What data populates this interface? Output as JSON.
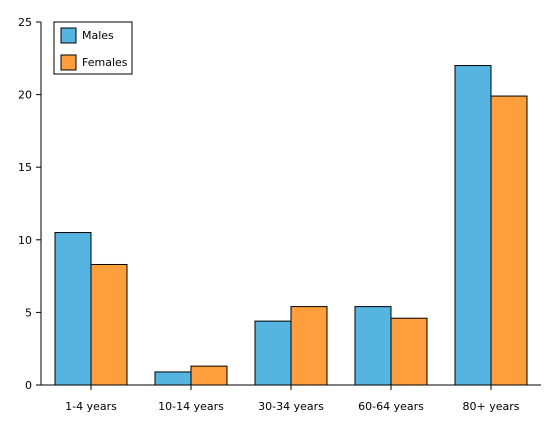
{
  "chart_data": {
    "type": "bar",
    "categories": [
      "1-4 years",
      "10-14 years",
      "30-34 years",
      "60-64 years",
      "80+ years"
    ],
    "series": [
      {
        "name": "Males",
        "values": [
          10.5,
          0.9,
          4.4,
          5.4,
          22.0
        ],
        "color": "#56b4e0"
      },
      {
        "name": "Females",
        "values": [
          8.3,
          1.3,
          5.4,
          4.6,
          19.9
        ],
        "color": "#ff9e3d"
      }
    ],
    "ylim": [
      0,
      25
    ],
    "yticks": [
      "0",
      "5",
      "10",
      "15",
      "20",
      "25"
    ],
    "grid": false,
    "legend_position": "top-left"
  }
}
